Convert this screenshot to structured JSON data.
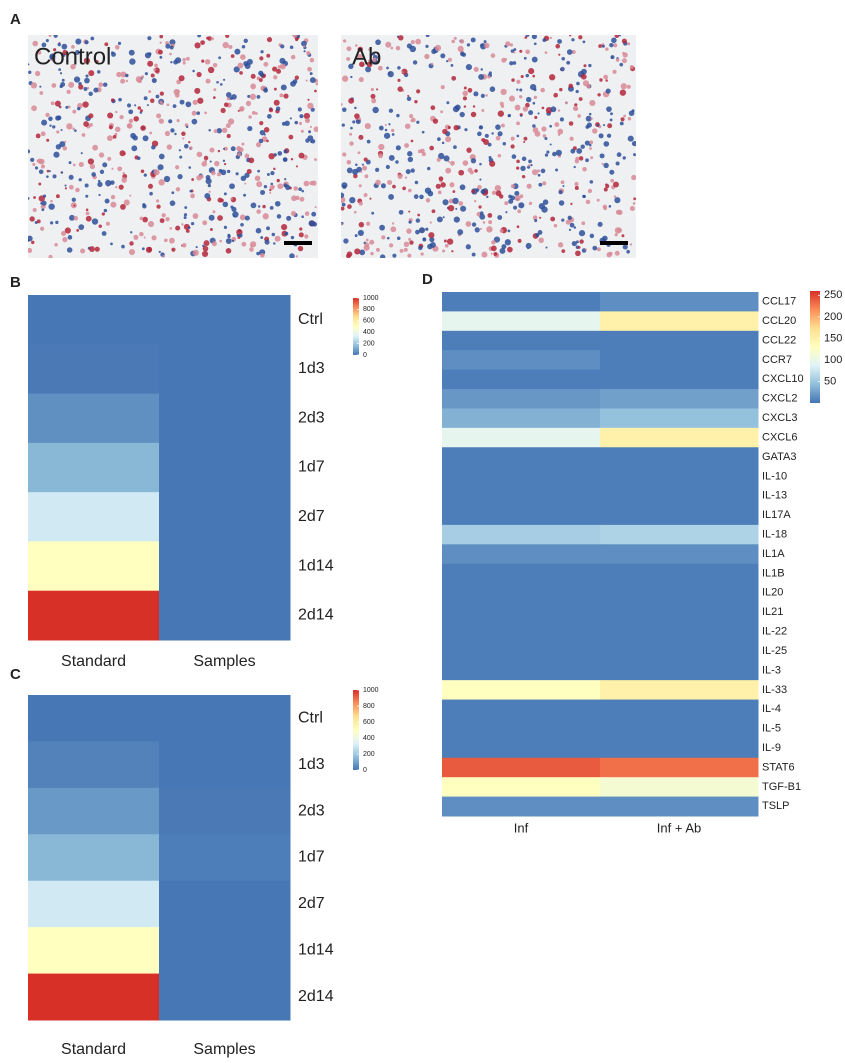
{
  "figure": {
    "panel_labels": [
      "A",
      "B",
      "C",
      "D"
    ],
    "images": [
      {
        "label": "Control"
      },
      {
        "label": "Ab"
      }
    ]
  },
  "chart_data": [
    {
      "type": "heatmap",
      "columns": [
        "Standard",
        "Samples"
      ],
      "rows": [
        "Ctrl",
        "1d3",
        "2d3",
        "1d7",
        "2d7",
        "1d14",
        "2d14"
      ],
      "values": [
        [
          5,
          5
        ],
        [
          10,
          5
        ],
        [
          60,
          5
        ],
        [
          150,
          5
        ],
        [
          300,
          5
        ],
        [
          500,
          5
        ],
        [
          1000,
          5
        ]
      ],
      "colormap": [
        "#4575b4",
        "#91bfdb",
        "#e0f3f8",
        "#ffffbf",
        "#fee090",
        "#fc8d59",
        "#d73027"
      ],
      "clim": [
        0,
        1000
      ],
      "cticks": [
        0,
        200,
        400,
        600,
        800,
        1000
      ]
    },
    {
      "type": "heatmap",
      "columns": [
        "Standard",
        "Samples"
      ],
      "rows": [
        "Ctrl",
        "1d3",
        "2d3",
        "1d7",
        "2d7",
        "1d14",
        "2d14"
      ],
      "values": [
        [
          5,
          5
        ],
        [
          30,
          5
        ],
        [
          80,
          10
        ],
        [
          150,
          20
        ],
        [
          300,
          5
        ],
        [
          500,
          5
        ],
        [
          1000,
          5
        ]
      ],
      "colormap": [
        "#4575b4",
        "#91bfdb",
        "#e0f3f8",
        "#ffffbf",
        "#fee090",
        "#fc8d59",
        "#d73027"
      ],
      "clim": [
        0,
        1000
      ],
      "cticks": [
        0,
        200,
        400,
        600,
        800,
        1000
      ]
    },
    {
      "type": "heatmap",
      "columns": [
        "Inf",
        "Inf + Ab"
      ],
      "rows": [
        "CCL17",
        "CCL20",
        "CCL22",
        "CCR7",
        "CXCL10",
        "CXCL2",
        "CXCL3",
        "CXCL6",
        "GATA3",
        "IL-10",
        "IL-13",
        "IL17A",
        "IL-18",
        "IL1A",
        "IL1B",
        "IL20",
        "IL21",
        "IL-22",
        "IL-25",
        "IL-3",
        "IL-33",
        "IL-4",
        "IL-5",
        "IL-9",
        "STAT6",
        "TGF-B1",
        "TSLP"
      ],
      "values": [
        [
          5,
          15
        ],
        [
          95,
          150
        ],
        [
          5,
          5
        ],
        [
          15,
          5
        ],
        [
          5,
          5
        ],
        [
          20,
          25
        ],
        [
          35,
          45
        ],
        [
          95,
          150
        ],
        [
          5,
          5
        ],
        [
          5,
          5
        ],
        [
          5,
          5
        ],
        [
          5,
          5
        ],
        [
          55,
          60
        ],
        [
          15,
          15
        ],
        [
          5,
          5
        ],
        [
          5,
          5
        ],
        [
          5,
          5
        ],
        [
          5,
          5
        ],
        [
          5,
          5
        ],
        [
          5,
          5
        ],
        [
          130,
          150
        ],
        [
          5,
          5
        ],
        [
          5,
          5
        ],
        [
          5,
          5
        ],
        [
          240,
          230
        ],
        [
          130,
          115
        ],
        [
          15,
          15
        ]
      ],
      "colormap": [
        "#4575b4",
        "#91bfdb",
        "#e0f3f8",
        "#ffffbf",
        "#fee090",
        "#fc8d59",
        "#d73027"
      ],
      "clim": [
        0,
        260
      ],
      "cticks": [
        50,
        100,
        150,
        200,
        250
      ]
    }
  ]
}
